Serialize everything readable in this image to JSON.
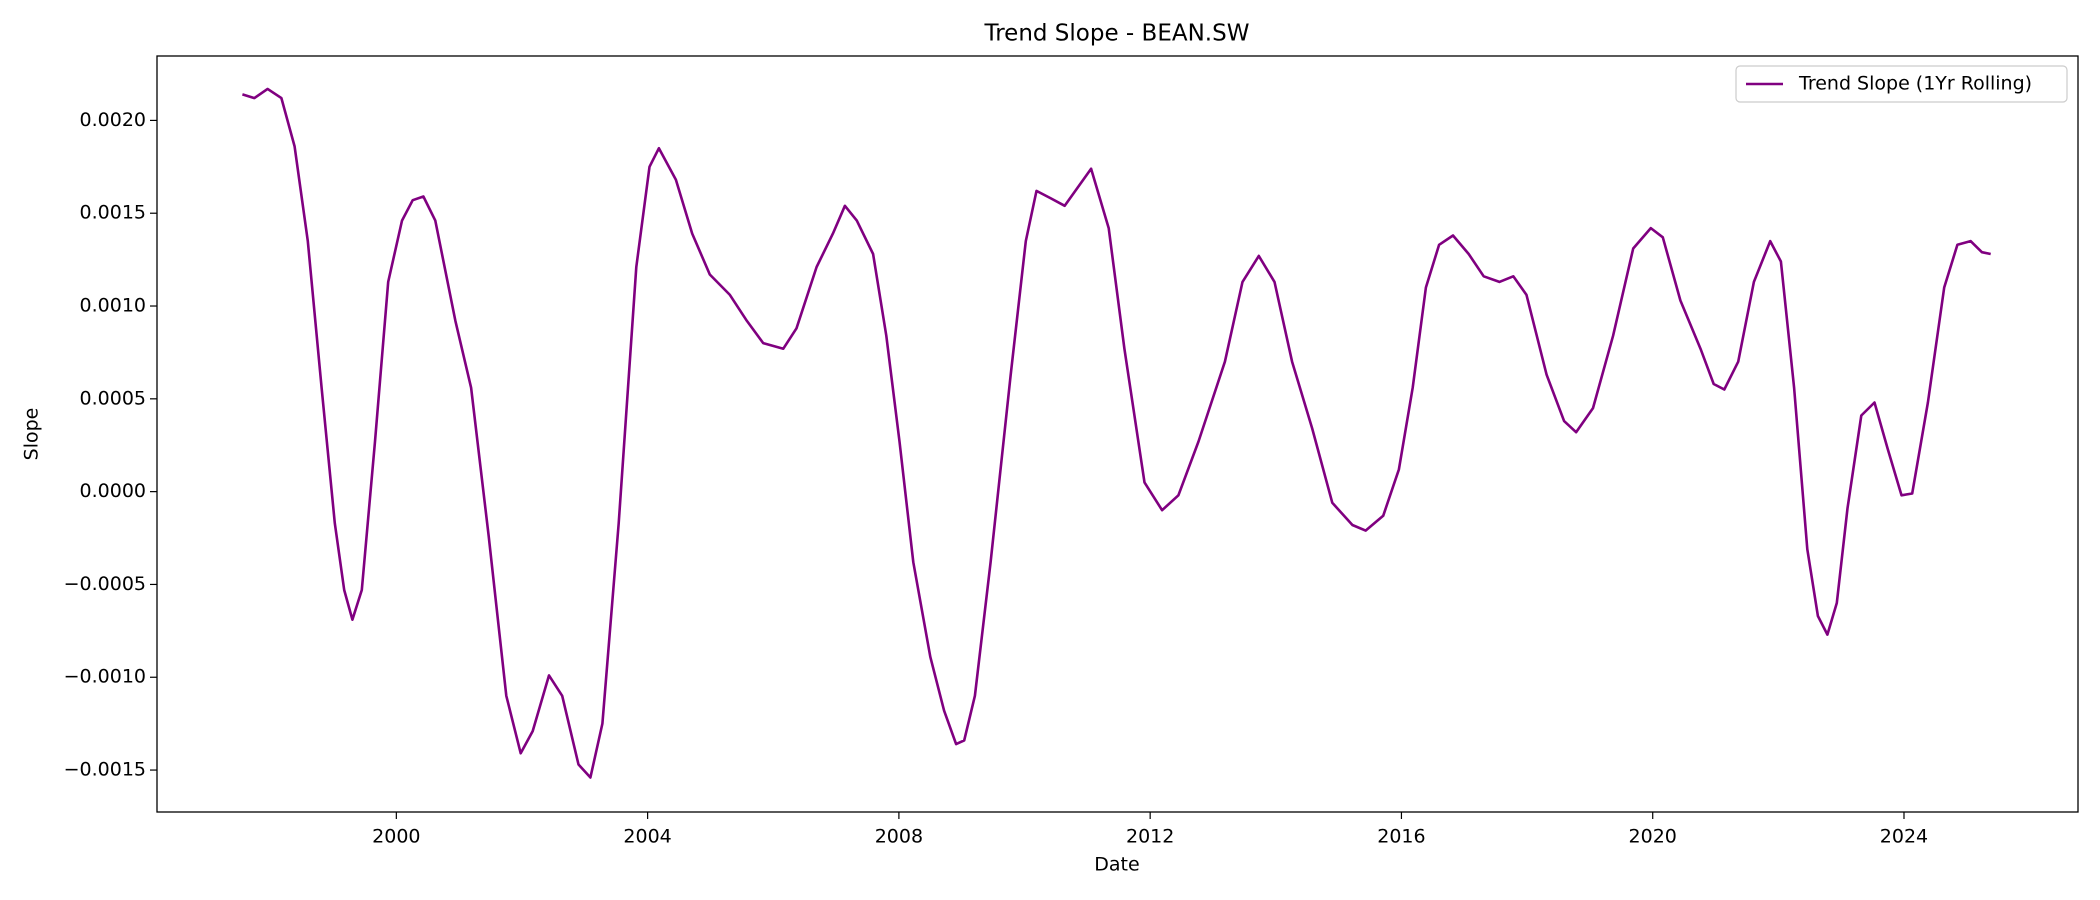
{
  "chart_data": {
    "type": "line",
    "title": "Trend Slope - BEAN.SW",
    "xlabel": "Date",
    "ylabel": "Slope",
    "legend": "upper right",
    "xlim": [
      1996.19,
      2026.77
    ],
    "xticks": [
      2000,
      2004,
      2008,
      2012,
      2016,
      2020,
      2024
    ],
    "ylim": [
      -0.001726,
      0.002347
    ],
    "yticks": [
      {
        "value": -0.0015,
        "label": "−0.0015"
      },
      {
        "value": -0.001,
        "label": "−0.0010"
      },
      {
        "value": -0.0005,
        "label": "−0.0005"
      },
      {
        "value": 0,
        "label": "0.0000"
      },
      {
        "value": 0.0005,
        "label": "0.0005"
      },
      {
        "value": 0.001,
        "label": "0.0010"
      },
      {
        "value": 0.0015,
        "label": "0.0015"
      },
      {
        "value": 0.002,
        "label": "0.0020"
      }
    ],
    "x": [
      1997.55,
      1997.74,
      1997.95,
      1998.17,
      1998.38,
      1998.59,
      1998.81,
      1999.02,
      1999.17,
      1999.3,
      1999.45,
      1999.66,
      1999.87,
      2000.09,
      2000.26,
      2000.43,
      2000.62,
      2000.94,
      2001.19,
      2001.47,
      2001.75,
      2001.98,
      2002.17,
      2002.43,
      2002.64,
      2002.9,
      2003.09,
      2003.28,
      2003.54,
      2003.82,
      2004.03,
      2004.18,
      2004.45,
      2004.71,
      2004.99,
      2005.31,
      2005.58,
      2005.84,
      2006.16,
      2006.37,
      2006.69,
      2006.95,
      2007.14,
      2007.33,
      2007.59,
      2007.8,
      2008.01,
      2008.23,
      2008.5,
      2008.72,
      2008.91,
      2009.04,
      2009.21,
      2009.46,
      2009.78,
      2010.02,
      2010.19,
      2010.42,
      2010.64,
      2010.85,
      2011.06,
      2011.34,
      2011.59,
      2011.91,
      2012.19,
      2012.45,
      2012.77,
      2013.19,
      2013.47,
      2013.73,
      2013.98,
      2014.26,
      2014.58,
      2014.9,
      2015.22,
      2015.43,
      2015.71,
      2015.96,
      2016.18,
      2016.39,
      2016.6,
      2016.82,
      2017.07,
      2017.31,
      2017.56,
      2017.78,
      2017.99,
      2018.31,
      2018.59,
      2018.78,
      2019.05,
      2019.37,
      2019.69,
      2019.97,
      2020.16,
      2020.44,
      2020.76,
      2020.97,
      2021.14,
      2021.36,
      2021.61,
      2021.87,
      2022.04,
      2022.25,
      2022.46,
      2022.63,
      2022.78,
      2022.93,
      2023.1,
      2023.32,
      2023.53,
      2023.74,
      2023.96,
      2024.13,
      2024.38,
      2024.64,
      2024.85,
      2025.06,
      2025.24,
      2025.38
    ],
    "series": [
      {
        "name": "Trend Slope (1Yr Rolling)",
        "color": "#800080",
        "values": [
          0.00214,
          0.00212,
          0.00217,
          0.00212,
          0.00186,
          0.00135,
          0.00056,
          -0.00017,
          -0.00053,
          -0.00069,
          -0.00053,
          0.00027,
          0.00113,
          0.00146,
          0.00157,
          0.00159,
          0.00146,
          0.00092,
          0.00056,
          -0.00024,
          -0.0011,
          -0.00141,
          -0.00129,
          -0.00099,
          -0.0011,
          -0.00147,
          -0.00154,
          -0.00125,
          -0.00017,
          0.00121,
          0.00175,
          0.00185,
          0.00168,
          0.00139,
          0.00117,
          0.00106,
          0.00092,
          0.0008,
          0.00077,
          0.00088,
          0.00121,
          0.00139,
          0.00154,
          0.00146,
          0.00128,
          0.00084,
          0.00027,
          -0.00038,
          -0.00089,
          -0.00118,
          -0.00136,
          -0.00134,
          -0.0011,
          -0.00038,
          0.00063,
          0.00135,
          0.00162,
          0.00158,
          0.00154,
          0.00164,
          0.00174,
          0.00142,
          0.00077,
          5e-05,
          -0.0001,
          -2e-05,
          0.00027,
          0.0007,
          0.00113,
          0.00127,
          0.00113,
          0.0007,
          0.00034,
          -6e-05,
          -0.00018,
          -0.00021,
          -0.00013,
          0.00012,
          0.00056,
          0.0011,
          0.00133,
          0.00138,
          0.00128,
          0.00116,
          0.00113,
          0.00116,
          0.00106,
          0.00063,
          0.00038,
          0.00032,
          0.00045,
          0.00084,
          0.00131,
          0.00142,
          0.00137,
          0.00103,
          0.00077,
          0.00058,
          0.00055,
          0.0007,
          0.00113,
          0.00135,
          0.00124,
          0.00056,
          -0.00031,
          -0.00067,
          -0.00077,
          -0.0006,
          -9e-05,
          0.00041,
          0.00048,
          0.00023,
          -2e-05,
          -1e-05,
          0.00048,
          0.0011,
          0.00133,
          0.00135,
          0.00129,
          0.00128
        ]
      }
    ]
  }
}
